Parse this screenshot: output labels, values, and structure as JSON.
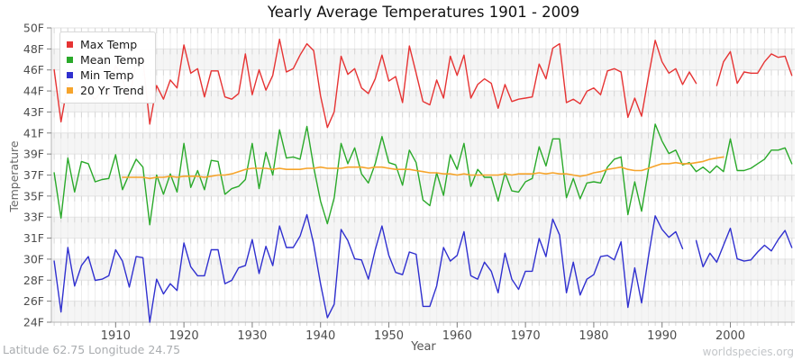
{
  "title": "Yearly Average Temperatures 1901 - 2009",
  "footer": {
    "left": "Latitude 62.75 Longitude 24.75",
    "right": "worldspecies.org"
  },
  "axes": {
    "y_label": "Temperature",
    "x_label": "Year"
  },
  "legend": [
    {
      "label": "Max Temp",
      "color": "#e63333"
    },
    {
      "label": "Mean Temp",
      "color": "#2aa92a"
    },
    {
      "label": "Min Temp",
      "color": "#3030cf"
    },
    {
      "label": "20 Yr Trend",
      "color": "#f6a42b"
    }
  ],
  "chart_data": {
    "type": "line",
    "title": "Yearly Average Temperatures 1901 - 2009",
    "xlabel": "Year",
    "ylabel": "Temperature",
    "xlim": [
      1901,
      2009
    ],
    "ylim": [
      24,
      50
    ],
    "grid": true,
    "legend_position": "top-left",
    "x_tick_years": [
      1910,
      1920,
      1930,
      1940,
      1950,
      1960,
      1970,
      1980,
      1990,
      2000
    ],
    "y_tick_labels": [
      "50F",
      "48F",
      "46F",
      "44F",
      "43F",
      "41F",
      "39F",
      "37F",
      "35F",
      "33F",
      "31F",
      "30F",
      "28F",
      "26F",
      "24F"
    ],
    "y_tick_values": [
      50,
      48.143,
      46.286,
      44.429,
      42.571,
      40.714,
      38.857,
      37,
      35.143,
      33.286,
      31.429,
      29.571,
      27.714,
      25.857,
      24
    ],
    "years": [
      1901,
      1902,
      1903,
      1904,
      1905,
      1906,
      1907,
      1908,
      1909,
      1910,
      1911,
      1912,
      1913,
      1914,
      1915,
      1916,
      1917,
      1918,
      1919,
      1920,
      1921,
      1922,
      1923,
      1924,
      1925,
      1926,
      1927,
      1928,
      1929,
      1930,
      1931,
      1932,
      1933,
      1934,
      1935,
      1936,
      1937,
      1938,
      1939,
      1940,
      1941,
      1942,
      1943,
      1944,
      1945,
      1946,
      1947,
      1948,
      1949,
      1950,
      1951,
      1952,
      1953,
      1954,
      1955,
      1956,
      1957,
      1958,
      1959,
      1960,
      1961,
      1962,
      1963,
      1964,
      1965,
      1966,
      1967,
      1968,
      1969,
      1970,
      1971,
      1972,
      1973,
      1974,
      1975,
      1976,
      1977,
      1978,
      1979,
      1980,
      1981,
      1982,
      1983,
      1984,
      1985,
      1986,
      1987,
      1988,
      1989,
      1990,
      1991,
      1992,
      1993,
      1994,
      1995,
      1996,
      1997,
      1998,
      1999,
      2000,
      2001,
      2002,
      2003,
      2004,
      2005,
      2006,
      2007,
      2008,
      2009
    ],
    "series": [
      {
        "name": "Max Temp",
        "color": "#e63333",
        "values": [
          46.3,
          41.7,
          45.1,
          44.1,
          44.8,
          44.4,
          43.7,
          44.5,
          43.9,
          46.7,
          45.5,
          43.6,
          47.1,
          47.2,
          41.5,
          44.9,
          43.7,
          45.4,
          44.7,
          48.5,
          46.0,
          46.4,
          43.9,
          46.2,
          46.2,
          43.9,
          43.7,
          44.2,
          47.7,
          44.1,
          46.3,
          44.5,
          45.8,
          49.0,
          46.1,
          46.4,
          47.6,
          48.6,
          48.0,
          44.0,
          41.2,
          42.6,
          47.5,
          45.9,
          46.4,
          44.7,
          44.2,
          45.5,
          47.6,
          45.3,
          45.7,
          43.4,
          48.4,
          46.0,
          43.5,
          43.2,
          45.4,
          43.8,
          47.5,
          45.8,
          47.6,
          43.8,
          45.0,
          45.5,
          45.1,
          42.9,
          45.0,
          43.5,
          43.7,
          43.8,
          43.9,
          46.8,
          45.5,
          48.2,
          48.6,
          43.4,
          43.7,
          43.3,
          44.4,
          44.7,
          44.1,
          46.2,
          46.4,
          46.1,
          42.1,
          43.8,
          42.2,
          45.7,
          48.9,
          47.0,
          46.0,
          46.4,
          45.0,
          46.1,
          45.1,
          null,
          null,
          44.9,
          47.0,
          47.9,
          45.1,
          46.1,
          46.0,
          46.0,
          47.0,
          47.7,
          47.4,
          47.5,
          45.8
        ]
      },
      {
        "name": "Mean Temp",
        "color": "#2aa92a",
        "values": [
          37.2,
          33.2,
          38.5,
          35.5,
          38.2,
          38.0,
          36.4,
          36.6,
          36.7,
          38.8,
          35.7,
          37.1,
          38.4,
          37.7,
          32.6,
          37.0,
          35.3,
          37.1,
          35.5,
          39.8,
          35.9,
          37.4,
          35.7,
          38.3,
          38.2,
          35.3,
          35.8,
          36.0,
          36.6,
          39.8,
          35.8,
          39.0,
          37.0,
          41.0,
          38.5,
          38.6,
          38.4,
          41.3,
          37.7,
          34.7,
          32.7,
          35.0,
          39.8,
          38.0,
          39.4,
          37.1,
          36.3,
          38.0,
          40.4,
          38.1,
          37.9,
          36.1,
          39.2,
          38.1,
          34.8,
          34.3,
          37.2,
          35.2,
          38.8,
          37.5,
          39.8,
          36.0,
          37.5,
          36.8,
          36.8,
          34.7,
          37.2,
          35.6,
          35.5,
          36.4,
          36.7,
          39.5,
          37.8,
          40.2,
          40.2,
          35.0,
          36.7,
          34.9,
          36.3,
          36.4,
          36.3,
          37.7,
          38.4,
          38.6,
          33.5,
          36.4,
          33.8,
          37.5,
          41.5,
          40.0,
          38.9,
          39.2,
          37.9,
          38.1,
          37.3,
          37.7,
          37.2,
          37.8,
          37.3,
          40.2,
          37.4,
          37.4,
          37.6,
          38.0,
          38.4,
          39.2,
          39.2,
          39.4,
          38.0
        ]
      },
      {
        "name": "Min Temp",
        "color": "#3030cf",
        "values": [
          29.4,
          24.9,
          30.6,
          27.2,
          29.0,
          29.8,
          27.7,
          27.8,
          28.1,
          30.4,
          29.4,
          27.1,
          29.8,
          29.7,
          24.0,
          27.8,
          26.5,
          27.4,
          26.8,
          31.0,
          28.9,
          28.1,
          28.1,
          30.4,
          30.4,
          27.4,
          27.7,
          28.8,
          29.0,
          31.3,
          28.3,
          30.7,
          29.0,
          32.5,
          30.6,
          30.6,
          31.6,
          33.5,
          30.9,
          27.4,
          24.4,
          25.6,
          32.2,
          31.2,
          29.6,
          29.5,
          27.8,
          30.4,
          32.5,
          29.9,
          28.4,
          28.2,
          30.2,
          30.0,
          25.4,
          25.4,
          27.2,
          30.6,
          29.4,
          29.9,
          32.0,
          28.1,
          27.8,
          29.3,
          28.5,
          26.6,
          30.1,
          27.8,
          26.9,
          28.5,
          28.5,
          31.4,
          29.8,
          33.1,
          31.7,
          26.6,
          29.3,
          26.4,
          27.8,
          28.2,
          29.8,
          29.9,
          29.5,
          31.1,
          25.3,
          28.8,
          25.7,
          29.8,
          33.4,
          32.2,
          31.5,
          32.0,
          30.5,
          null,
          31.2,
          28.9,
          30.1,
          29.3,
          30.8,
          32.3,
          29.6,
          29.4,
          29.5,
          30.2,
          30.8,
          30.3,
          31.3,
          32.1,
          30.6
        ]
      },
      {
        "name": "20 Yr Trend",
        "color": "#f6a42b",
        "values": [
          null,
          null,
          null,
          null,
          null,
          null,
          null,
          null,
          null,
          null,
          36.8,
          36.8,
          36.8,
          36.8,
          36.7,
          36.8,
          36.8,
          36.9,
          36.8,
          36.9,
          36.9,
          36.9,
          36.8,
          36.9,
          37.0,
          37.0,
          37.1,
          37.3,
          37.5,
          37.6,
          37.6,
          37.6,
          37.5,
          37.6,
          37.5,
          37.5,
          37.5,
          37.6,
          37.6,
          37.7,
          37.6,
          37.6,
          37.6,
          37.7,
          37.7,
          37.7,
          37.6,
          37.7,
          37.7,
          37.6,
          37.5,
          37.5,
          37.5,
          37.4,
          37.3,
          37.2,
          37.2,
          37.1,
          37.1,
          37.0,
          37.1,
          37.0,
          37.0,
          37.0,
          37.0,
          37.0,
          37.1,
          37.0,
          37.1,
          37.1,
          37.1,
          37.2,
          37.1,
          37.2,
          37.1,
          37.1,
          37.0,
          36.9,
          37.0,
          37.2,
          37.3,
          37.5,
          37.6,
          37.7,
          37.5,
          37.4,
          37.4,
          37.6,
          37.8,
          38.0,
          38.0,
          38.1,
          38.0,
          38.0,
          38.1,
          38.2,
          38.4,
          38.5,
          38.6,
          null,
          null,
          null,
          null,
          null,
          null,
          null,
          null,
          null,
          null
        ]
      }
    ]
  }
}
